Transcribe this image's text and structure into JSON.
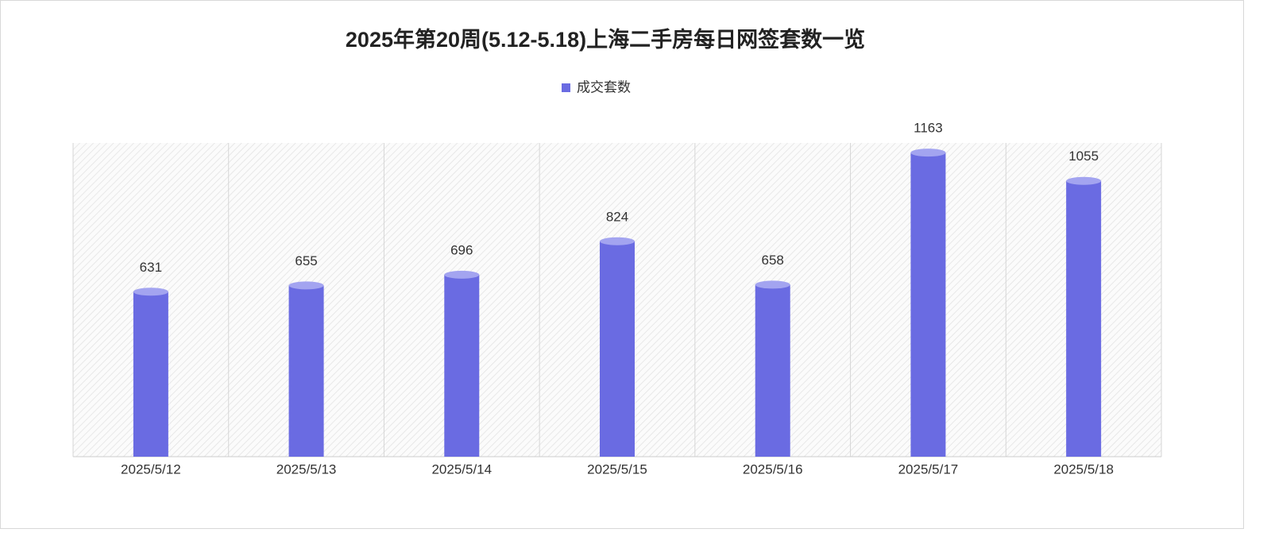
{
  "chart_data": {
    "type": "bar",
    "title": "2025年第20周(5.12-5.18)上海二手房每日网签套数一览",
    "categories": [
      "2025/5/12",
      "2025/5/13",
      "2025/5/14",
      "2025/5/15",
      "2025/5/16",
      "2025/5/17",
      "2025/5/18"
    ],
    "series": [
      {
        "name": "成交套数",
        "color": "#6a6be2",
        "values": [
          631,
          655,
          696,
          824,
          658,
          1163,
          1055
        ]
      }
    ],
    "ylim": [
      0,
      1200
    ],
    "legend": "top"
  }
}
